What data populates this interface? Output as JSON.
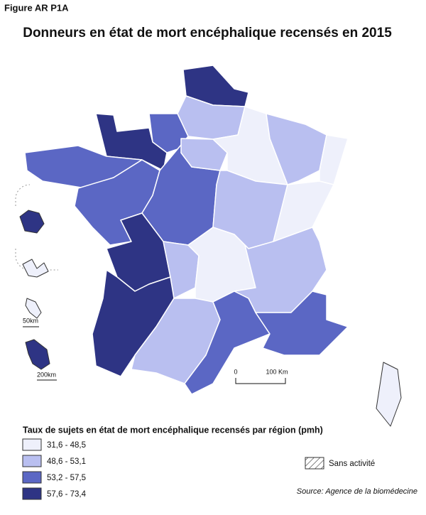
{
  "header": {
    "figure": "Figure AR P1A",
    "title": "Donneurs en état de mort encéphalique recensés en 2015"
  },
  "map": {
    "scale_labels": [
      "0",
      "100 Km"
    ],
    "inset_scales": [
      "50km",
      "200km"
    ]
  },
  "legend": {
    "title": "Taux de sujets en état de mort encéphalique recensés par région (pmh)",
    "classes": [
      {
        "label": "31,6 - 48,5",
        "color": "#eef0fb"
      },
      {
        "label": "48,6 - 53,1",
        "color": "#b9bff0"
      },
      {
        "label": "53,2 - 57,5",
        "color": "#5b67c4"
      },
      {
        "label": "57,6 - 73,4",
        "color": "#2e3484"
      }
    ],
    "no_activity": "Sans activité"
  },
  "source": "Source: Agence de la biomédecine"
}
